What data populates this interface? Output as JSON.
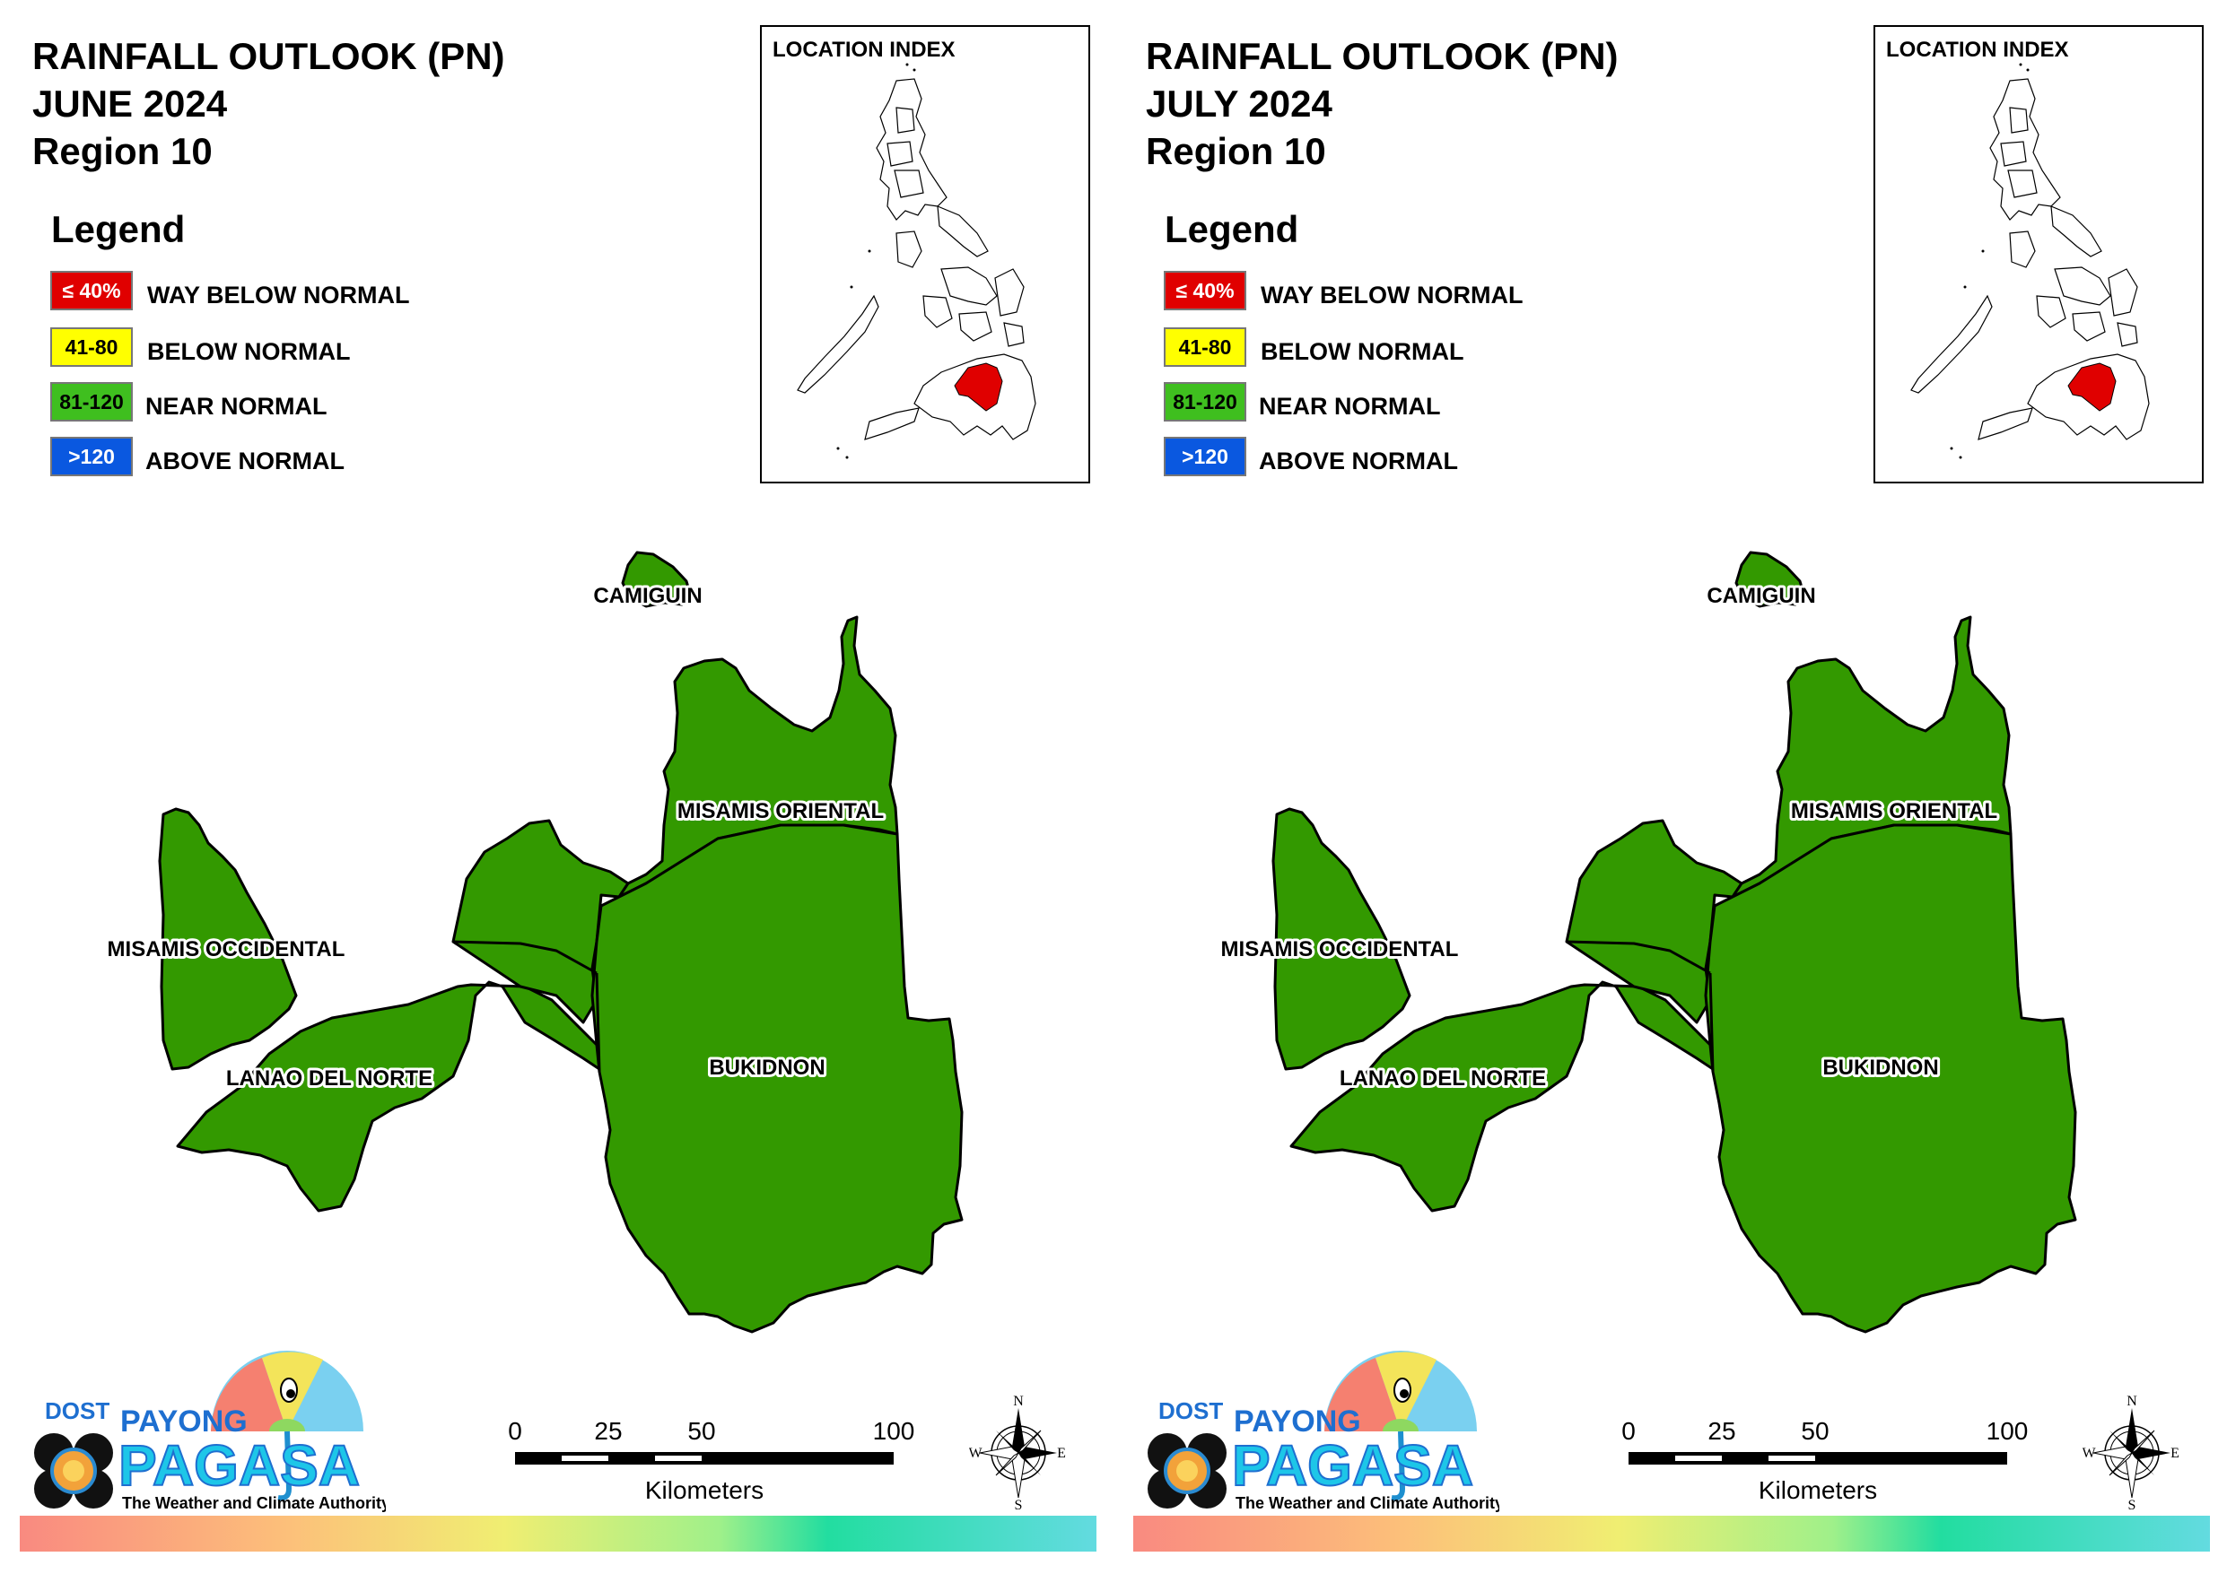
{
  "panels": [
    {
      "title": [
        "RAINFALL OUTLOOK (PN)",
        "JUNE 2024",
        "Region 10"
      ],
      "legend_title": "Legend",
      "location_index_title": "LOCATION INDEX"
    },
    {
      "title": [
        "RAINFALL OUTLOOK (PN)",
        "JULY 2024",
        "Region 10"
      ],
      "legend_title": "Legend",
      "location_index_title": "LOCATION INDEX"
    }
  ],
  "legend": [
    {
      "range": "≤ 40%",
      "label": "WAY BELOW NORMAL",
      "color": "#e00000",
      "text_color": "#ffffff"
    },
    {
      "range": "41-80",
      "label": "BELOW NORMAL",
      "color": "#ffff00",
      "text_color": "#000000"
    },
    {
      "range": "81-120",
      "label": "NEAR NORMAL",
      "color": "#3fbf1f",
      "text_color": "#000000"
    },
    {
      "range": ">120",
      "label": "ABOVE NORMAL",
      "color": "#0a58e0",
      "text_color": "#ffffff"
    }
  ],
  "provinces": {
    "camiguin": "CAMIGUIN",
    "misamis_oriental": "MISAMIS ORIENTAL",
    "misamis_occidental": "MISAMIS OCCIDENTAL",
    "lanao_del_norte": "LANAO DEL NORTE",
    "bukidnon": "BUKIDNON"
  },
  "province_color": "#339900",
  "highlight_color": "#e00000",
  "scale": {
    "ticks": [
      "0",
      "25",
      "50",
      "100"
    ],
    "unit": "Kilometers"
  },
  "compass": {
    "n": "N",
    "s": "S",
    "e": "E",
    "w": "W"
  },
  "logo": {
    "dost": "DOST",
    "payong": "PAYONG",
    "pagasa": "PAGASA",
    "tagline": "The Weather and Climate Authority"
  }
}
